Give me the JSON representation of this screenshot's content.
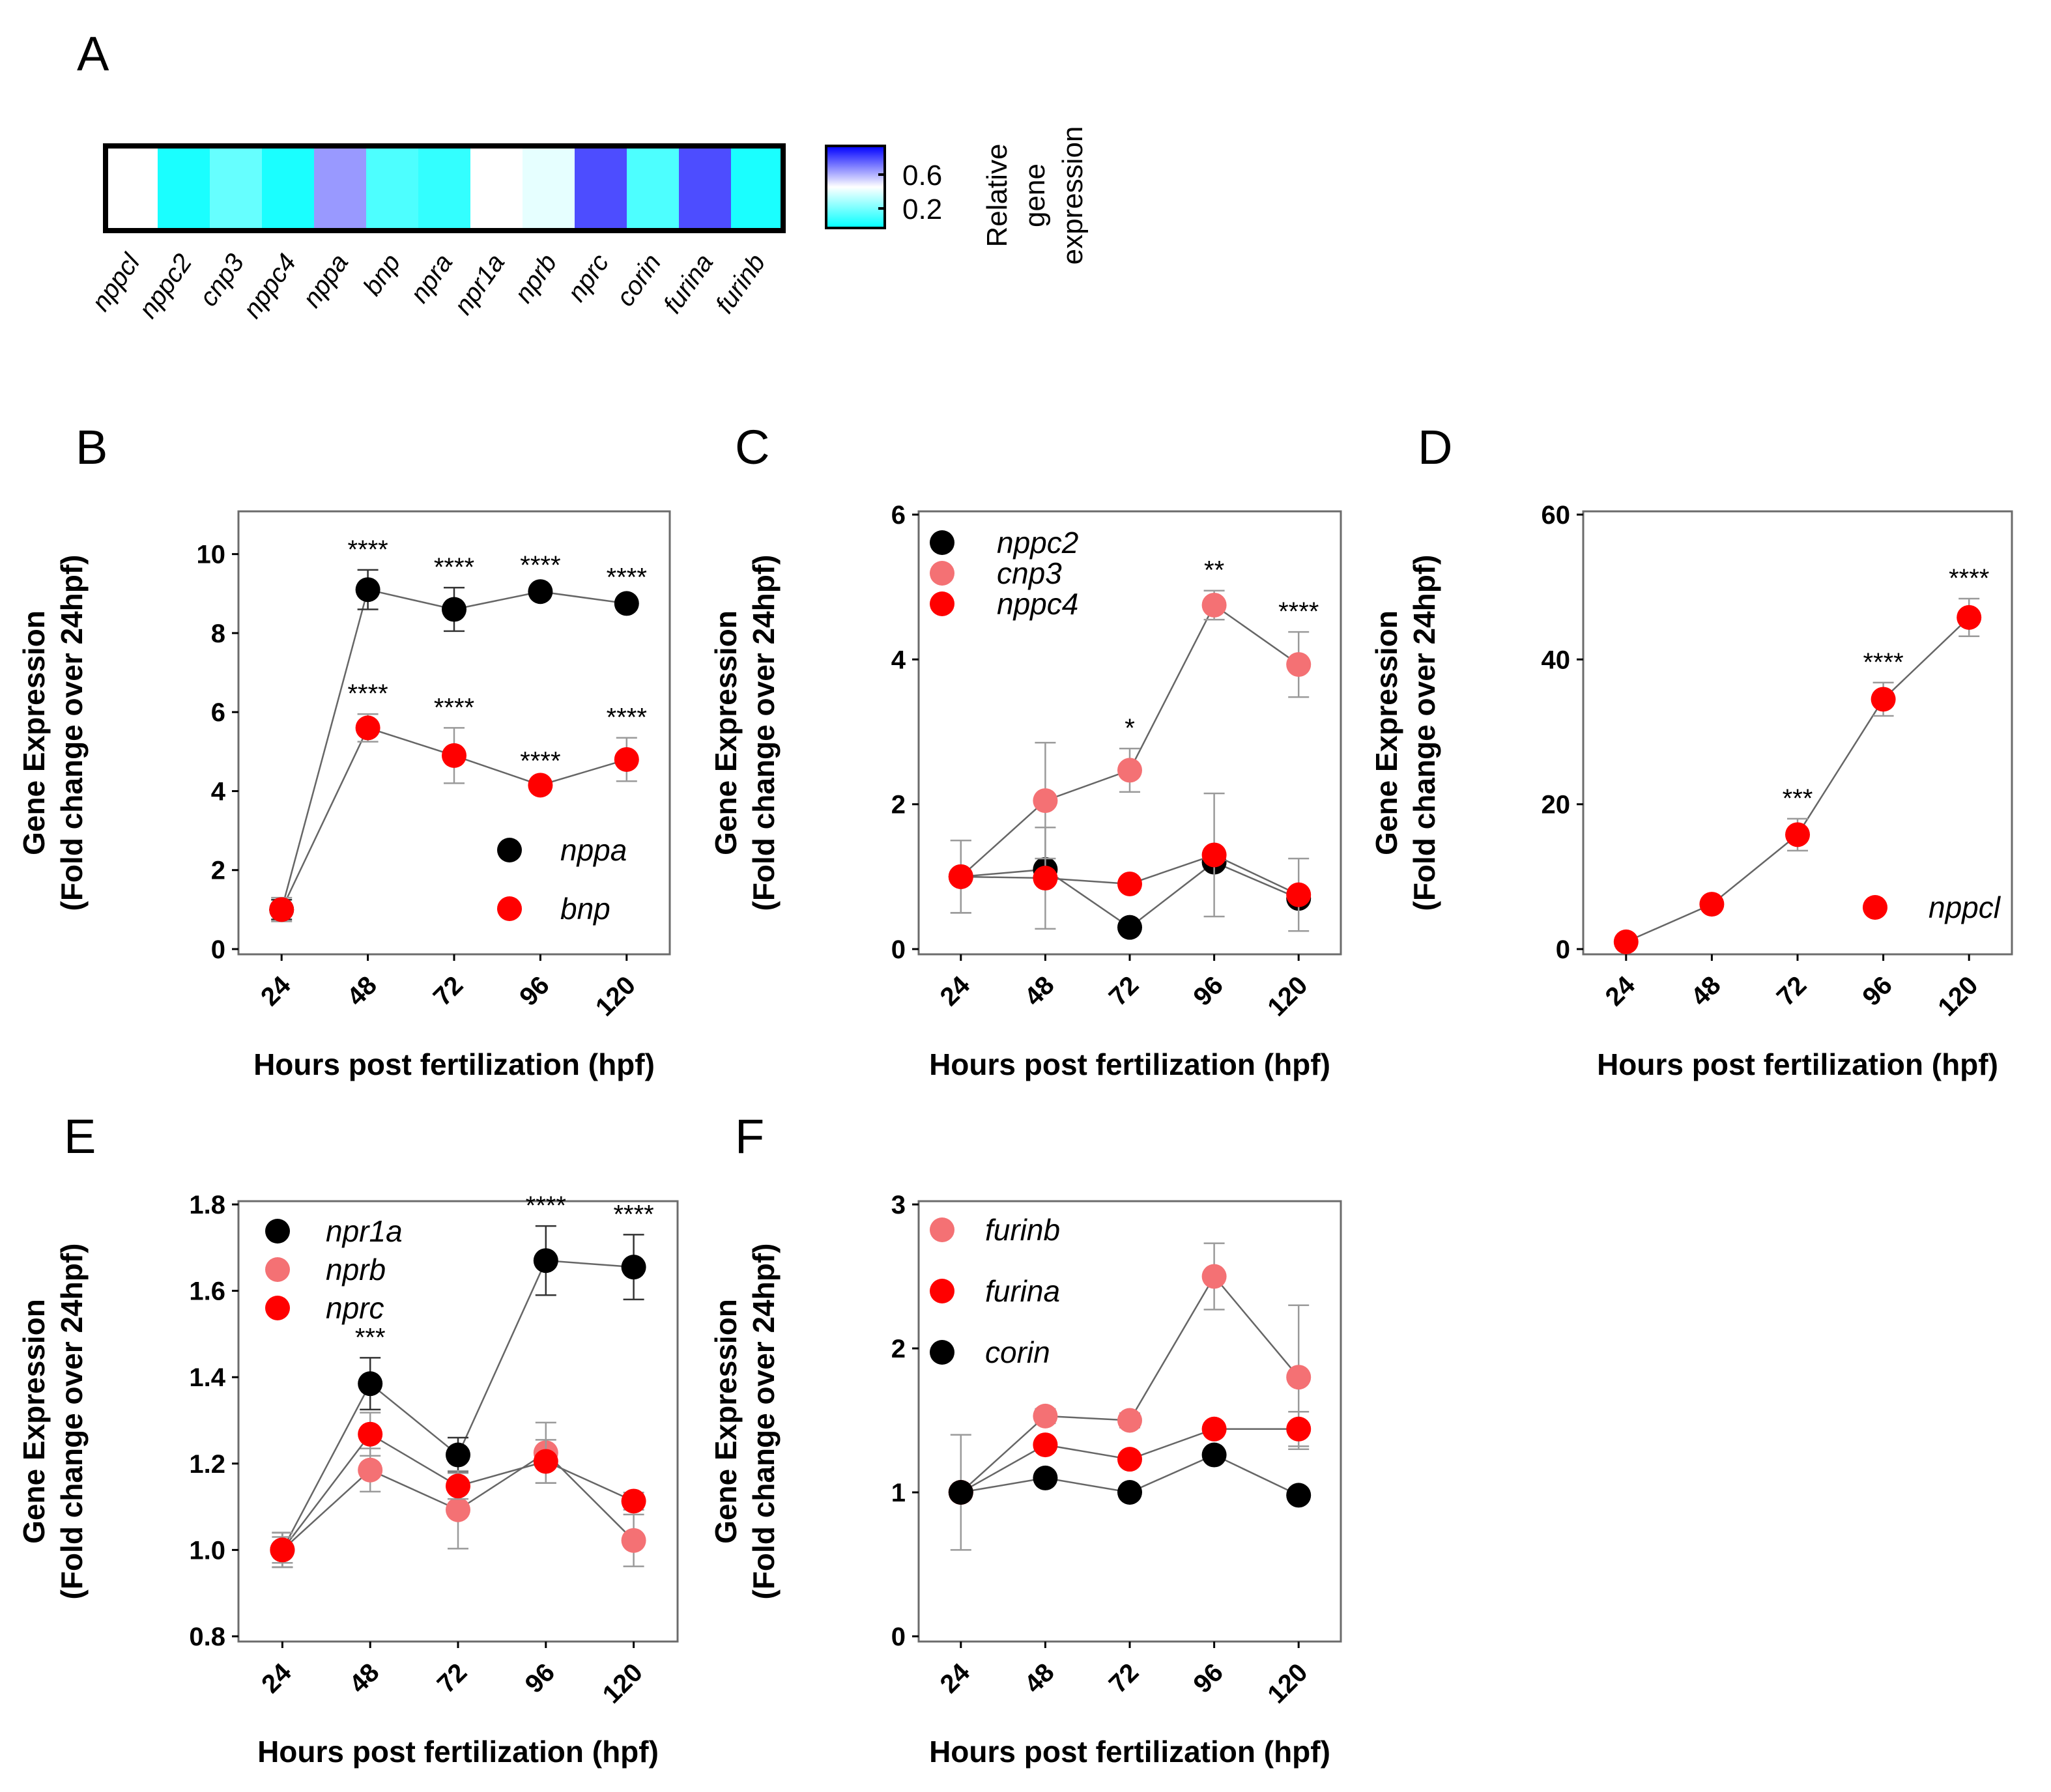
{
  "heatmap": {
    "letter": "A",
    "genes": [
      "nppcl",
      "nppc2",
      "cnp3",
      "nppc4",
      "nppa",
      "bnp",
      "npra",
      "npr1a",
      "nprb",
      "nprc",
      "corin",
      "furina",
      "furinb"
    ],
    "values": [
      0.5,
      0.05,
      0.2,
      0.05,
      0.7,
      0.15,
      0.1,
      0.5,
      0.45,
      0.85,
      0.15,
      0.85,
      0.05
    ],
    "colorbar": {
      "ticks": [
        "0.6",
        "0.2"
      ],
      "title_lines": [
        "Relative",
        "gene",
        "expression"
      ],
      "low_color": "#00ffff",
      "mid_color": "#ffffff",
      "high_color": "#0000ff"
    }
  },
  "chart_data": [
    {
      "id": "B",
      "type": "scatter",
      "letter": "B",
      "xlabel": "Hours post fertilization (hpf)",
      "ylabel_lines": [
        "Gene Expression",
        "(Fold change over 24hpf)"
      ],
      "categories": [
        "24",
        "48",
        "72",
        "96",
        "120"
      ],
      "yticks": [
        "0",
        "2",
        "4",
        "6",
        "8",
        "10"
      ],
      "ylim": [
        0,
        11
      ],
      "legend_position": "bottom-right",
      "series": [
        {
          "name": "nppa",
          "color": "#000000",
          "values": [
            1.0,
            9.1,
            8.6,
            9.05,
            8.75
          ],
          "errors": [
            0.25,
            0.5,
            0.55,
            0.15,
            0.15
          ],
          "sig": [
            "",
            "****",
            "****",
            "****",
            "****"
          ]
        },
        {
          "name": "bnp",
          "color": "#ff0000",
          "values": [
            1.0,
            5.6,
            4.9,
            4.15,
            4.8
          ],
          "errors": [
            0.3,
            0.35,
            0.7,
            0.1,
            0.55
          ],
          "sig": [
            "",
            "****",
            "****",
            "****",
            "****"
          ]
        }
      ]
    },
    {
      "id": "C",
      "type": "scatter",
      "letter": "C",
      "xlabel": "Hours post fertilization (hpf)",
      "ylabel_lines": [
        "Gene Expression",
        "(Fold change over 24hpf)"
      ],
      "categories": [
        "24",
        "48",
        "72",
        "96",
        "120"
      ],
      "yticks": [
        "0",
        "2",
        "4",
        "6"
      ],
      "ylim": [
        0,
        6
      ],
      "legend_position": "top-left",
      "series": [
        {
          "name": "nppc2",
          "color": "#000000",
          "values": [
            1.0,
            1.1,
            0.3,
            1.2,
            0.7
          ],
          "errors": [
            0,
            0,
            0,
            0,
            0
          ],
          "sig": [
            "",
            "",
            "",
            "",
            ""
          ]
        },
        {
          "name": "cnp3",
          "color": "#f47174",
          "values": [
            1.0,
            2.05,
            2.47,
            4.75,
            3.93
          ],
          "errors": [
            0.5,
            0.8,
            0.3,
            0.2,
            0.45
          ],
          "sig": [
            "",
            "",
            "*",
            "**",
            "****"
          ]
        },
        {
          "name": "nppc4",
          "color": "#ff0000",
          "values": [
            1.0,
            0.98,
            0.9,
            1.3,
            0.75
          ],
          "errors": [
            0.5,
            0.7,
            0.05,
            0.85,
            0.5
          ],
          "sig": [
            "",
            "",
            "",
            "",
            ""
          ]
        }
      ]
    },
    {
      "id": "D",
      "type": "scatter",
      "letter": "D",
      "xlabel": "Hours post fertilization (hpf)",
      "ylabel_lines": [
        "Gene Expression",
        "(Fold change over 24hpf)"
      ],
      "categories": [
        "24",
        "48",
        "72",
        "96",
        "120"
      ],
      "yticks": [
        "0",
        "20",
        "40",
        "60"
      ],
      "ylim": [
        0,
        60
      ],
      "legend_position": "bottom-right",
      "series": [
        {
          "name": "nppcl",
          "color": "#ff0000",
          "values": [
            1.0,
            6.2,
            15.8,
            34.5,
            45.8
          ],
          "errors": [
            0.3,
            0.5,
            2.2,
            2.3,
            2.6
          ],
          "sig": [
            "",
            "",
            "***",
            "****",
            "****"
          ]
        }
      ]
    },
    {
      "id": "E",
      "type": "scatter",
      "letter": "E",
      "xlabel": "Hours post fertilization (hpf)",
      "ylabel_lines": [
        "Gene Expression",
        "(Fold change over 24hpf)"
      ],
      "categories": [
        "24",
        "48",
        "72",
        "96",
        "120"
      ],
      "yticks": [
        "0.8",
        "1.0",
        "1.2",
        "1.4",
        "1.6",
        "1.8"
      ],
      "ylim": [
        0.8,
        1.8
      ],
      "legend_position": "top-left",
      "series": [
        {
          "name": "npr1a",
          "color": "#000000",
          "values": [
            1.0,
            1.385,
            1.22,
            1.67,
            1.655
          ],
          "errors": [
            0.04,
            0.06,
            0.04,
            0.08,
            0.075
          ],
          "sig": [
            "",
            "***",
            "",
            "****",
            "****"
          ]
        },
        {
          "name": "nprb",
          "color": "#f47174",
          "values": [
            1.0,
            1.185,
            1.093,
            1.225,
            1.022
          ],
          "errors": [
            0.04,
            0.05,
            0.09,
            0.07,
            0.06
          ],
          "sig": [
            "",
            "",
            "",
            "",
            ""
          ]
        },
        {
          "name": "nprc",
          "color": "#ff0000",
          "values": [
            1.0,
            1.268,
            1.148,
            1.205,
            1.113
          ],
          "errors": [
            0.03,
            0.05,
            0.03,
            0.05,
            0.02
          ],
          "sig": [
            "",
            "",
            "",
            "",
            ""
          ]
        }
      ]
    },
    {
      "id": "F",
      "type": "scatter",
      "letter": "F",
      "xlabel": "Hours post fertilization (hpf)",
      "ylabel_lines": [
        "Gene Expression",
        "(Fold change over 24hpf)"
      ],
      "categories": [
        "24",
        "48",
        "72",
        "96",
        "120"
      ],
      "yticks": [
        "0",
        "1",
        "2",
        "3"
      ],
      "ylim": [
        0,
        3
      ],
      "legend_position": "top-left",
      "series": [
        {
          "name": "furinb",
          "color": "#f47174",
          "values": [
            1.0,
            1.53,
            1.5,
            2.5,
            1.8
          ],
          "errors": [
            0.4,
            0.05,
            0.05,
            0.23,
            0.5
          ],
          "sig": [
            "",
            "",
            "",
            "",
            ""
          ]
        },
        {
          "name": "furina",
          "color": "#ff0000",
          "values": [
            1.0,
            1.33,
            1.23,
            1.44,
            1.44
          ],
          "errors": [
            0,
            0,
            0,
            0,
            0.12
          ],
          "sig": [
            "",
            "",
            "",
            "",
            ""
          ]
        },
        {
          "name": "corin",
          "color": "#000000",
          "values": [
            1.0,
            1.1,
            1.0,
            1.26,
            0.98
          ],
          "errors": [
            0,
            0,
            0,
            0,
            0
          ],
          "sig": [
            "",
            "",
            "",
            "",
            ""
          ]
        }
      ]
    }
  ]
}
